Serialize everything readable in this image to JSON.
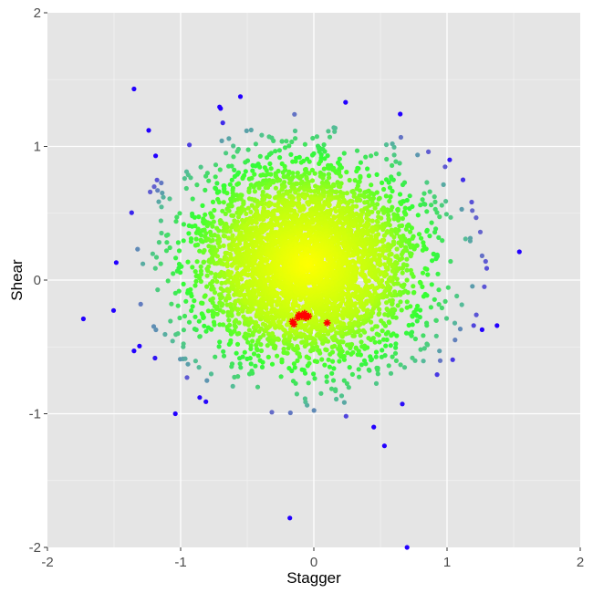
{
  "chart_data": {
    "type": "scatter",
    "title": "",
    "xlabel": "Stagger",
    "ylabel": "Shear",
    "xlim": [
      -2,
      2
    ],
    "ylim": [
      -2,
      2
    ],
    "x_ticks": [
      "-2",
      "-1",
      "0",
      "1",
      "2"
    ],
    "y_ticks": [
      "-2",
      "-1",
      "0",
      "1",
      "2"
    ],
    "grid": true,
    "legend": "none",
    "colors": {
      "panel_background": "#e5e5e5",
      "grid_major": "#ffffff",
      "grid_minor": "#f2f2f2",
      "density_high": "#ffff00",
      "density_mid": "#33ff33",
      "density_low": "#6666cc",
      "density_lowest": "#2200ff",
      "highlight": "#ff0000"
    },
    "series": [
      {
        "marker": "dot",
        "color_by": "local density (yellow high, green mid, blue low)",
        "approx_count": 4500,
        "center": [
          -0.05,
          0.12
        ],
        "spread_x": 0.42,
        "spread_y": 0.36,
        "outliers": [
          [
            -1.35,
            1.43
          ],
          [
            -1.24,
            1.12
          ],
          [
            -1.73,
            -0.29
          ],
          [
            -1.35,
            -0.53
          ],
          [
            -1.04,
            -1.0
          ],
          [
            -0.18,
            -1.78
          ],
          [
            0.7,
            -2.0
          ],
          [
            0.53,
            -1.24
          ],
          [
            0.45,
            -1.1
          ],
          [
            1.02,
            0.9
          ],
          [
            1.12,
            0.75
          ],
          [
            1.19,
            0.52
          ],
          [
            1.25,
            0.36
          ],
          [
            1.28,
            -0.05
          ],
          [
            1.29,
            0.14
          ],
          [
            1.2,
            -0.34
          ],
          [
            1.22,
            -0.26
          ],
          [
            0.86,
            0.96
          ],
          [
            -0.66,
            0.95
          ],
          [
            -0.14,
            1.06
          ],
          [
            0.12,
            1.07
          ],
          [
            0.59,
            1.02
          ],
          [
            -1.13,
            0.62
          ],
          [
            -1.3,
            -0.18
          ],
          [
            -0.81,
            -0.91
          ],
          [
            -1.02,
            -0.4
          ]
        ]
      },
      {
        "marker": "star",
        "color": "#ff0000",
        "points": [
          [
            -0.16,
            -0.31
          ],
          [
            -0.15,
            -0.33
          ],
          [
            -0.12,
            -0.28
          ],
          [
            -0.11,
            -0.26
          ],
          [
            -0.09,
            -0.27
          ],
          [
            -0.07,
            -0.25
          ],
          [
            -0.06,
            -0.28
          ],
          [
            -0.04,
            -0.27
          ],
          [
            0.1,
            -0.32
          ]
        ]
      }
    ]
  }
}
